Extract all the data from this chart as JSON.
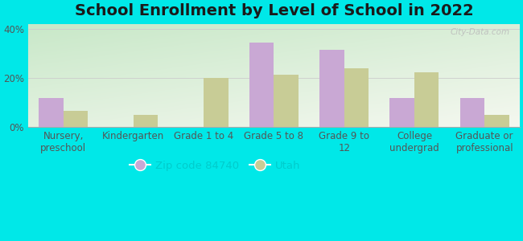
{
  "title": "School Enrollment by Level of School in 2022",
  "categories": [
    "Nursery,\npreschool",
    "Kindergarten",
    "Grade 1 to 4",
    "Grade 5 to 8",
    "Grade 9 to\n12",
    "College\nundergrad",
    "Graduate or\nprofessional"
  ],
  "zip_values": [
    12.0,
    0.0,
    0.0,
    34.5,
    31.5,
    12.0,
    12.0
  ],
  "utah_values": [
    6.5,
    5.0,
    20.0,
    21.5,
    24.0,
    22.5,
    5.0
  ],
  "zip_color": "#c9a8d4",
  "utah_color": "#c8cc96",
  "background_outer": "#00e8e8",
  "background_inner_topleft": "#d4ecd4",
  "background_inner_bottomright": "#f0f8ec",
  "ylim": [
    0,
    42
  ],
  "yticks": [
    0,
    20,
    40
  ],
  "ytick_labels": [
    "0%",
    "20%",
    "40%"
  ],
  "legend_zip_label": "Zip code 84740",
  "legend_utah_label": "Utah",
  "watermark": "City-Data.com",
  "title_fontsize": 14,
  "tick_fontsize": 8.5,
  "legend_fontsize": 9.5,
  "bar_width": 0.35
}
